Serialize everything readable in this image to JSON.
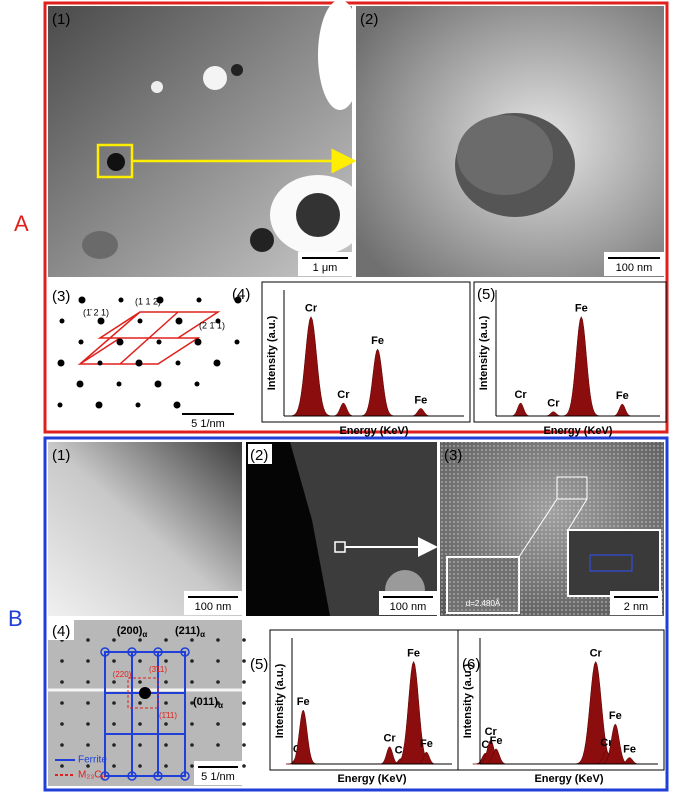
{
  "panel_A": {
    "label": "A",
    "images": [
      {
        "label": "(1)",
        "scale_bar": "1 μm"
      },
      {
        "label": "(2)",
        "scale_bar": "100 nm"
      }
    ],
    "diffraction": {
      "label": "(3)",
      "scale_bar": "5 1/nm",
      "indices": [
        "(1̄ 2 1)",
        "(1 1 2)",
        "(2 1̄ 1)"
      ]
    },
    "spectra": [
      {
        "label": "(4)",
        "y_label": "Intensity (a.u.)",
        "x_label": "Energy (KeV)",
        "peaks": [
          {
            "label": "Cr",
            "x": 15,
            "height": 92
          },
          {
            "label": "Cr",
            "x": 33,
            "height": 12
          },
          {
            "label": "Fe",
            "x": 52,
            "height": 62
          },
          {
            "label": "Fe",
            "x": 76,
            "height": 7
          }
        ]
      },
      {
        "label": "(5)",
        "y_label": "Intensity (a.u.)",
        "x_label": "Energy (KeV)",
        "peaks": [
          {
            "label": "Cr",
            "x": 15,
            "height": 12
          },
          {
            "label": "Cr",
            "x": 35,
            "height": 4
          },
          {
            "label": "Fe",
            "x": 52,
            "height": 92
          },
          {
            "label": "Fe",
            "x": 77,
            "height": 11
          }
        ]
      }
    ]
  },
  "panel_B": {
    "label": "B",
    "images": [
      {
        "label": "(1)",
        "scale_bar": "100 nm"
      },
      {
        "label": "(2)",
        "scale_bar": "100 nm"
      },
      {
        "label": "(3)",
        "scale_bar": "2 nm",
        "inset_text": "d=2.480Å"
      }
    ],
    "diffraction": {
      "label": "(4)",
      "scale_bar": "5 1/nm",
      "ferrite_indices": [
        {
          "main": "(200)",
          "sub": "α"
        },
        {
          "main": "(211)",
          "sub": "α"
        },
        {
          "main": "(011)",
          "sub": "α"
        }
      ],
      "carbide_indices": [
        "(220)",
        "(3̄11)",
        "(1̄11)"
      ],
      "legend": [
        "Ferrite",
        "M₂₃C₆"
      ]
    },
    "spectra": [
      {
        "label": "(5)",
        "y_label": "Intensity (a.u.)",
        "x_label": "Energy (KeV)",
        "peaks": [
          {
            "label": "C",
            "x": 3,
            "height": 6
          },
          {
            "label": "Fe",
            "x": 7,
            "height": 50
          },
          {
            "label": "Cr",
            "x": 61,
            "height": 16
          },
          {
            "label": "Cr",
            "x": 68,
            "height": 5
          },
          {
            "label": "Fe",
            "x": 76,
            "height": 95
          },
          {
            "label": "Fe",
            "x": 84,
            "height": 11
          }
        ]
      },
      {
        "label": "(6)",
        "y_label": "Intensity (a.u.)",
        "x_label": "Energy (KeV)",
        "peaks": [
          {
            "label": "C",
            "x": 3,
            "height": 10
          },
          {
            "label": "Cr",
            "x": 6,
            "height": 22
          },
          {
            "label": "Fe",
            "x": 9,
            "height": 14
          },
          {
            "label": "Cr",
            "x": 65,
            "height": 95
          },
          {
            "label": "Cr",
            "x": 71,
            "height": 12
          },
          {
            "label": "Fe",
            "x": 76,
            "height": 37
          },
          {
            "label": "Fe",
            "x": 84,
            "height": 6
          }
        ]
      }
    ]
  }
}
